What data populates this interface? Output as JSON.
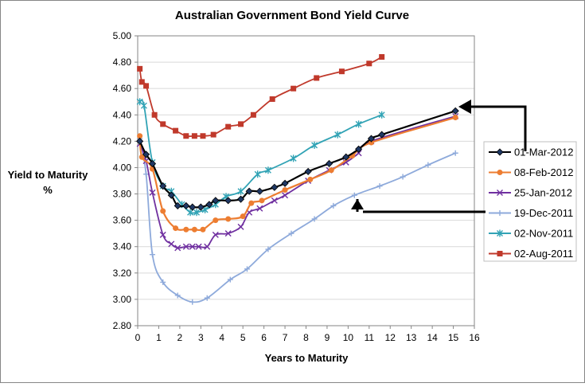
{
  "chart_data": {
    "type": "line",
    "title": "Australian Government Bond Yield Curve",
    "xlabel": "Years to Maturity",
    "ylabel_lines": [
      "Yield to Maturity",
      "%"
    ],
    "xlim": [
      0,
      16
    ],
    "ylim": [
      2.8,
      5.0
    ],
    "xticks": [
      "0",
      "1",
      "2",
      "3",
      "4",
      "5",
      "6",
      "7",
      "8",
      "9",
      "10",
      "11",
      "12",
      "13",
      "14",
      "15",
      "16"
    ],
    "yticks": [
      "2.80",
      "3.00",
      "3.20",
      "3.40",
      "3.60",
      "3.80",
      "4.00",
      "4.20",
      "4.40",
      "4.60",
      "4.80",
      "5.00"
    ],
    "grid": "horizontal",
    "legend_position": "right",
    "series": [
      {
        "name": "01-Mar-2012",
        "color": "#1f3864",
        "marker": "diamond",
        "line_color": "#000000",
        "width": 2.2,
        "points": [
          [
            0.1,
            4.2
          ],
          [
            0.4,
            4.1
          ],
          [
            0.7,
            4.03
          ],
          [
            1.2,
            3.86
          ],
          [
            1.6,
            3.79
          ],
          [
            1.9,
            3.71
          ],
          [
            2.3,
            3.71
          ],
          [
            2.6,
            3.7
          ],
          [
            3.0,
            3.7
          ],
          [
            3.4,
            3.72
          ],
          [
            3.7,
            3.75
          ],
          [
            4.3,
            3.75
          ],
          [
            4.9,
            3.76
          ],
          [
            5.3,
            3.82
          ],
          [
            5.8,
            3.82
          ],
          [
            6.5,
            3.85
          ],
          [
            7.0,
            3.88
          ],
          [
            8.1,
            3.97
          ],
          [
            9.1,
            4.03
          ],
          [
            9.9,
            4.08
          ],
          [
            10.5,
            4.14
          ],
          [
            11.1,
            4.22
          ],
          [
            11.6,
            4.25
          ],
          [
            15.1,
            4.43
          ]
        ]
      },
      {
        "name": "08-Feb-2012",
        "color": "#ed7d31",
        "marker": "circle",
        "width": 2.2,
        "points": [
          [
            0.1,
            4.24
          ],
          [
            0.2,
            4.08
          ],
          [
            0.7,
            3.99
          ],
          [
            1.2,
            3.67
          ],
          [
            1.8,
            3.54
          ],
          [
            2.3,
            3.53
          ],
          [
            2.7,
            3.53
          ],
          [
            3.1,
            3.53
          ],
          [
            3.7,
            3.6
          ],
          [
            4.3,
            3.61
          ],
          [
            5.0,
            3.63
          ],
          [
            5.4,
            3.73
          ],
          [
            5.9,
            3.75
          ],
          [
            7.0,
            3.83
          ],
          [
            8.2,
            3.91
          ],
          [
            9.2,
            3.98
          ],
          [
            10.2,
            4.09
          ],
          [
            11.1,
            4.19
          ],
          [
            15.1,
            4.38
          ]
        ]
      },
      {
        "name": "25-Jan-2012",
        "color": "#7030a0",
        "marker": "x",
        "width": 1.8,
        "points": [
          [
            0.1,
            4.18
          ],
          [
            0.4,
            4.05
          ],
          [
            0.7,
            3.81
          ],
          [
            1.2,
            3.49
          ],
          [
            1.6,
            3.42
          ],
          [
            1.9,
            3.39
          ],
          [
            2.3,
            3.4
          ],
          [
            2.6,
            3.4
          ],
          [
            2.9,
            3.4
          ],
          [
            3.3,
            3.4
          ],
          [
            3.7,
            3.49
          ],
          [
            4.3,
            3.5
          ],
          [
            4.9,
            3.55
          ],
          [
            5.3,
            3.66
          ],
          [
            5.8,
            3.69
          ],
          [
            6.5,
            3.75
          ],
          [
            7.0,
            3.79
          ],
          [
            8.1,
            3.9
          ],
          [
            9.1,
            3.98
          ],
          [
            9.9,
            4.04
          ],
          [
            10.5,
            4.11
          ],
          [
            11.1,
            4.2
          ],
          [
            15.1,
            4.39
          ]
        ]
      },
      {
        "name": "19-Dec-2011",
        "color": "#8eaadb",
        "marker": "plus",
        "width": 1.8,
        "points": [
          [
            0.1,
            4.22
          ],
          [
            0.4,
            3.95
          ],
          [
            0.7,
            3.34
          ],
          [
            1.2,
            3.13
          ],
          [
            1.9,
            3.03
          ],
          [
            2.6,
            2.98
          ],
          [
            3.3,
            3.01
          ],
          [
            4.4,
            3.15
          ],
          [
            5.2,
            3.23
          ],
          [
            6.2,
            3.38
          ],
          [
            7.3,
            3.5
          ],
          [
            8.4,
            3.61
          ],
          [
            9.3,
            3.71
          ],
          [
            10.3,
            3.79
          ],
          [
            11.5,
            3.86
          ],
          [
            12.6,
            3.93
          ],
          [
            13.8,
            4.02
          ],
          [
            15.1,
            4.11
          ]
        ]
      },
      {
        "name": "02-Nov-2011",
        "color": "#31a3b5",
        "marker": "star",
        "width": 1.8,
        "points": [
          [
            0.1,
            4.5
          ],
          [
            0.3,
            4.47
          ],
          [
            0.7,
            4.04
          ],
          [
            1.2,
            3.86
          ],
          [
            1.6,
            3.82
          ],
          [
            2.1,
            3.72
          ],
          [
            2.5,
            3.66
          ],
          [
            2.8,
            3.66
          ],
          [
            3.2,
            3.68
          ],
          [
            3.7,
            3.72
          ],
          [
            4.2,
            3.78
          ],
          [
            4.9,
            3.82
          ],
          [
            5.7,
            3.95
          ],
          [
            6.2,
            3.98
          ],
          [
            7.4,
            4.07
          ],
          [
            8.4,
            4.17
          ],
          [
            9.5,
            4.25
          ],
          [
            10.5,
            4.33
          ],
          [
            11.6,
            4.4
          ]
        ]
      },
      {
        "name": "02-Aug-2011",
        "color": "#c0392b",
        "marker": "square",
        "width": 1.8,
        "points": [
          [
            0.1,
            4.75
          ],
          [
            0.2,
            4.65
          ],
          [
            0.4,
            4.62
          ],
          [
            0.8,
            4.4
          ],
          [
            1.2,
            4.33
          ],
          [
            1.8,
            4.28
          ],
          [
            2.3,
            4.24
          ],
          [
            2.7,
            4.24
          ],
          [
            3.1,
            4.24
          ],
          [
            3.6,
            4.25
          ],
          [
            4.3,
            4.31
          ],
          [
            4.9,
            4.33
          ],
          [
            5.5,
            4.4
          ],
          [
            6.4,
            4.52
          ],
          [
            7.4,
            4.6
          ],
          [
            8.5,
            4.68
          ],
          [
            9.7,
            4.73
          ],
          [
            11.0,
            4.79
          ],
          [
            11.6,
            4.84
          ]
        ]
      }
    ]
  }
}
